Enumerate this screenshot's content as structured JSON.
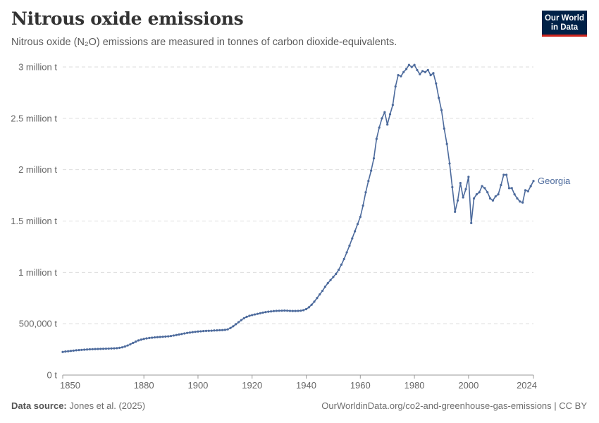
{
  "header": {
    "title": "Nitrous oxide emissions",
    "subtitle": "Nitrous oxide (N₂O) emissions are measured in tonnes of carbon dioxide-equivalents."
  },
  "logo": {
    "line1": "Our World",
    "line2": "in Data"
  },
  "footer": {
    "source_label": "Data source:",
    "source_text": "Jones et al. (2025)",
    "right_text": "OurWorldinData.org/co2-and-greenhouse-gas-emissions | CC BY"
  },
  "colors": {
    "series": "#4c6a9c",
    "grid": "#dddddd",
    "axis": "#999999",
    "logo_bg": "#002147",
    "logo_accent": "#ce261e"
  },
  "chart_data": {
    "type": "line",
    "title": "Nitrous oxide emissions",
    "subtitle": "Nitrous oxide (N₂O) emissions are measured in tonnes of carbon dioxide-equivalents.",
    "xlim": [
      1850,
      2024
    ],
    "ylim": [
      0,
      3000000
    ],
    "x_ticks": [
      1850,
      1880,
      1900,
      1920,
      1940,
      1960,
      1980,
      2000,
      2024
    ],
    "y_ticks": [
      {
        "value": 0,
        "label": "0 t"
      },
      {
        "value": 500000,
        "label": "500,000 t"
      },
      {
        "value": 1000000,
        "label": "1 million t"
      },
      {
        "value": 1500000,
        "label": "1.5 million t"
      },
      {
        "value": 2000000,
        "label": "2 million t"
      },
      {
        "value": 2500000,
        "label": "2.5 million t"
      },
      {
        "value": 3000000,
        "label": "3 million t"
      }
    ],
    "grid": "horizontal dashed",
    "legend": "inline label at line end",
    "series": [
      {
        "name": "Georgia",
        "color": "#4c6a9c",
        "points": [
          [
            1850,
            225000
          ],
          [
            1851,
            229000
          ],
          [
            1852,
            232000
          ],
          [
            1853,
            235000
          ],
          [
            1854,
            238000
          ],
          [
            1855,
            241000
          ],
          [
            1856,
            243000
          ],
          [
            1857,
            245000
          ],
          [
            1858,
            247000
          ],
          [
            1859,
            249000
          ],
          [
            1860,
            251000
          ],
          [
            1861,
            252000
          ],
          [
            1862,
            253000
          ],
          [
            1863,
            254000
          ],
          [
            1864,
            255000
          ],
          [
            1865,
            256000
          ],
          [
            1866,
            257000
          ],
          [
            1867,
            258000
          ],
          [
            1868,
            259000
          ],
          [
            1869,
            260000
          ],
          [
            1870,
            262000
          ],
          [
            1871,
            265000
          ],
          [
            1872,
            270000
          ],
          [
            1873,
            278000
          ],
          [
            1874,
            288000
          ],
          [
            1875,
            300000
          ],
          [
            1876,
            313000
          ],
          [
            1877,
            326000
          ],
          [
            1878,
            337000
          ],
          [
            1879,
            345000
          ],
          [
            1880,
            352000
          ],
          [
            1881,
            357000
          ],
          [
            1882,
            361000
          ],
          [
            1883,
            364000
          ],
          [
            1884,
            367000
          ],
          [
            1885,
            369000
          ],
          [
            1886,
            371000
          ],
          [
            1887,
            373000
          ],
          [
            1888,
            375000
          ],
          [
            1889,
            377000
          ],
          [
            1890,
            380000
          ],
          [
            1891,
            385000
          ],
          [
            1892,
            390000
          ],
          [
            1893,
            395000
          ],
          [
            1894,
            400000
          ],
          [
            1895,
            405000
          ],
          [
            1896,
            410000
          ],
          [
            1897,
            414000
          ],
          [
            1898,
            418000
          ],
          [
            1899,
            421000
          ],
          [
            1900,
            424000
          ],
          [
            1901,
            426000
          ],
          [
            1902,
            428000
          ],
          [
            1903,
            430000
          ],
          [
            1904,
            431000
          ],
          [
            1905,
            432000
          ],
          [
            1906,
            434000
          ],
          [
            1907,
            435000
          ],
          [
            1908,
            437000
          ],
          [
            1909,
            438000
          ],
          [
            1910,
            440000
          ],
          [
            1911,
            445000
          ],
          [
            1912,
            458000
          ],
          [
            1913,
            475000
          ],
          [
            1914,
            495000
          ],
          [
            1915,
            515000
          ],
          [
            1916,
            535000
          ],
          [
            1917,
            553000
          ],
          [
            1918,
            567000
          ],
          [
            1919,
            577000
          ],
          [
            1920,
            584000
          ],
          [
            1921,
            590000
          ],
          [
            1922,
            596000
          ],
          [
            1923,
            602000
          ],
          [
            1924,
            608000
          ],
          [
            1925,
            613000
          ],
          [
            1926,
            617000
          ],
          [
            1927,
            620000
          ],
          [
            1928,
            623000
          ],
          [
            1929,
            625000
          ],
          [
            1930,
            626000
          ],
          [
            1931,
            627000
          ],
          [
            1932,
            628000
          ],
          [
            1933,
            627000
          ],
          [
            1934,
            625000
          ],
          [
            1935,
            624000
          ],
          [
            1936,
            624000
          ],
          [
            1937,
            625000
          ],
          [
            1938,
            627000
          ],
          [
            1939,
            632000
          ],
          [
            1940,
            642000
          ],
          [
            1941,
            660000
          ],
          [
            1942,
            685000
          ],
          [
            1943,
            715000
          ],
          [
            1944,
            750000
          ],
          [
            1945,
            785000
          ],
          [
            1946,
            820000
          ],
          [
            1947,
            860000
          ],
          [
            1948,
            895000
          ],
          [
            1949,
            925000
          ],
          [
            1950,
            955000
          ],
          [
            1951,
            985000
          ],
          [
            1952,
            1025000
          ],
          [
            1953,
            1075000
          ],
          [
            1954,
            1130000
          ],
          [
            1955,
            1195000
          ],
          [
            1956,
            1260000
          ],
          [
            1957,
            1330000
          ],
          [
            1958,
            1400000
          ],
          [
            1959,
            1470000
          ],
          [
            1960,
            1540000
          ],
          [
            1961,
            1650000
          ],
          [
            1962,
            1780000
          ],
          [
            1963,
            1890000
          ],
          [
            1964,
            1990000
          ],
          [
            1965,
            2110000
          ],
          [
            1966,
            2300000
          ],
          [
            1967,
            2410000
          ],
          [
            1968,
            2500000
          ],
          [
            1969,
            2560000
          ],
          [
            1970,
            2440000
          ],
          [
            1971,
            2540000
          ],
          [
            1972,
            2630000
          ],
          [
            1973,
            2810000
          ],
          [
            1974,
            2920000
          ],
          [
            1975,
            2910000
          ],
          [
            1976,
            2950000
          ],
          [
            1977,
            2980000
          ],
          [
            1978,
            3020000
          ],
          [
            1979,
            3000000
          ],
          [
            1980,
            3020000
          ],
          [
            1981,
            2970000
          ],
          [
            1982,
            2930000
          ],
          [
            1983,
            2960000
          ],
          [
            1984,
            2950000
          ],
          [
            1985,
            2970000
          ],
          [
            1986,
            2920000
          ],
          [
            1987,
            2940000
          ],
          [
            1988,
            2840000
          ],
          [
            1989,
            2700000
          ],
          [
            1990,
            2580000
          ],
          [
            1991,
            2400000
          ],
          [
            1992,
            2250000
          ],
          [
            1993,
            2060000
          ],
          [
            1994,
            1830000
          ],
          [
            1995,
            1590000
          ],
          [
            1996,
            1700000
          ],
          [
            1997,
            1870000
          ],
          [
            1998,
            1730000
          ],
          [
            1999,
            1810000
          ],
          [
            2000,
            1930000
          ],
          [
            2001,
            1480000
          ],
          [
            2002,
            1720000
          ],
          [
            2003,
            1760000
          ],
          [
            2004,
            1780000
          ],
          [
            2005,
            1840000
          ],
          [
            2006,
            1820000
          ],
          [
            2007,
            1780000
          ],
          [
            2008,
            1720000
          ],
          [
            2009,
            1700000
          ],
          [
            2010,
            1740000
          ],
          [
            2011,
            1760000
          ],
          [
            2012,
            1850000
          ],
          [
            2013,
            1950000
          ],
          [
            2014,
            1950000
          ],
          [
            2015,
            1820000
          ],
          [
            2016,
            1820000
          ],
          [
            2017,
            1760000
          ],
          [
            2018,
            1720000
          ],
          [
            2019,
            1690000
          ],
          [
            2020,
            1680000
          ],
          [
            2021,
            1800000
          ],
          [
            2022,
            1790000
          ],
          [
            2023,
            1840000
          ],
          [
            2024,
            1890000
          ]
        ]
      }
    ]
  }
}
